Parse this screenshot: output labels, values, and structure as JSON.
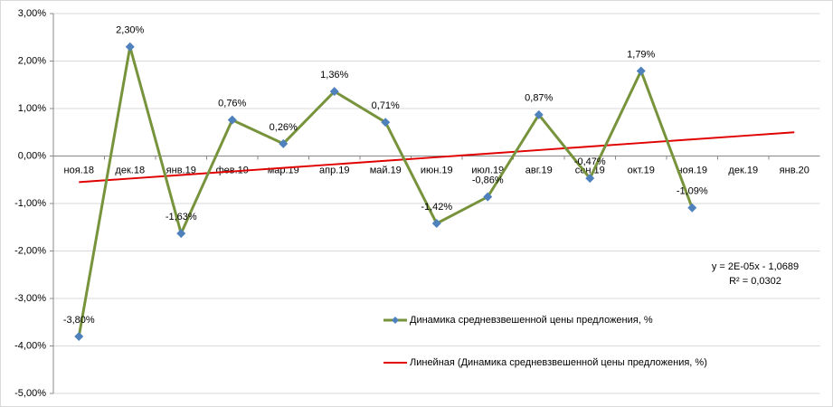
{
  "chart_data": {
    "type": "line",
    "categories": [
      "ноя.18",
      "дек.18",
      "янв.19",
      "фев.19",
      "мар.19",
      "апр.19",
      "май.19",
      "июн.19",
      "июл.19",
      "авг.19",
      "сен.19",
      "окт.19",
      "ноя.19",
      "дек.19",
      "янв.20"
    ],
    "series": [
      {
        "name": "Динамика средневзвешенной  цены предложения,  %",
        "color": "#77933c",
        "marker_color": "#4f81bd",
        "values": [
          -3.8,
          2.3,
          -1.63,
          0.76,
          0.26,
          1.36,
          0.71,
          -1.42,
          -0.86,
          0.87,
          -0.47,
          1.79,
          -1.09,
          null,
          null
        ],
        "value_labels": [
          "-3,80%",
          "2,30%",
          "-1,63%",
          "0,76%",
          "0,26%",
          "1,36%",
          "0,71%",
          "-1,42%",
          "-0,86%",
          "0,87%",
          "-0,47%",
          "1,79%",
          "-1,09%",
          null,
          null
        ]
      },
      {
        "name": "Линейная (Динамика средневзвешенной  цены предложения, %)",
        "color": "#e00000",
        "values": [
          -0.55,
          -0.475,
          -0.4,
          -0.325,
          -0.25,
          -0.175,
          -0.1,
          -0.025,
          0.05,
          0.125,
          0.2,
          0.275,
          0.35,
          0.425,
          0.5
        ]
      }
    ],
    "ylim": [
      -5,
      3
    ],
    "yticks": [
      {
        "value": -5,
        "label": "-5,00%"
      },
      {
        "value": -4,
        "label": "-4,00%"
      },
      {
        "value": -3,
        "label": "-3,00%"
      },
      {
        "value": -2,
        "label": "-2,00%"
      },
      {
        "value": -1,
        "label": "-1,00%"
      },
      {
        "value": 0,
        "label": "0,00%"
      },
      {
        "value": 1,
        "label": "1,00%"
      },
      {
        "value": 2,
        "label": "2,00%"
      },
      {
        "value": 3,
        "label": "3,00%"
      }
    ],
    "grid": true,
    "annotations": [
      "y = 2E-05x - 1,0689",
      "R² = 0,0302"
    ]
  }
}
